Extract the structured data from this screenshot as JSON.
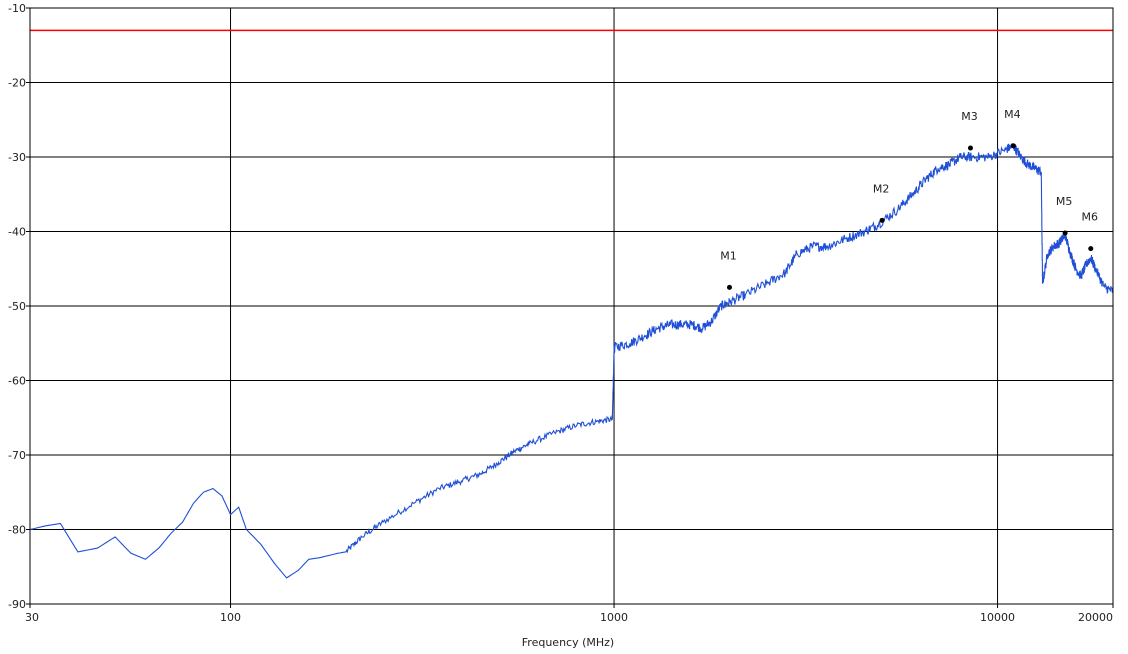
{
  "chart_data": {
    "type": "line",
    "title": "",
    "xlabel": "Frequency (MHz)",
    "ylabel": "",
    "x_scale": "log",
    "xlim": [
      30,
      20000
    ],
    "ylim": [
      -90,
      -10
    ],
    "grid": true,
    "x_ticks": [
      "30",
      "100",
      "1000",
      "10000",
      "20000"
    ],
    "x_tick_values": [
      30,
      100,
      1000,
      10000,
      20000
    ],
    "y_ticks": [
      "-10",
      "-20",
      "-30",
      "-40",
      "-50",
      "-60",
      "-70",
      "-80",
      "-90"
    ],
    "y_tick_values": [
      -10,
      -20,
      -30,
      -40,
      -50,
      -60,
      -70,
      -80,
      -90
    ],
    "limit_line": {
      "value": -13,
      "color": "#ff0000"
    },
    "series": [
      {
        "color": "#1f4fd6",
        "x": [
          30,
          33,
          36,
          40,
          45,
          50,
          55,
          60,
          65,
          70,
          75,
          80,
          85,
          90,
          95,
          100,
          105,
          110,
          120,
          130,
          140,
          150,
          160,
          170,
          180,
          190,
          200,
          220,
          250,
          300,
          350,
          400,
          450,
          500,
          550,
          600,
          700,
          800,
          900,
          990,
          1000,
          1005,
          1100,
          1200,
          1300,
          1400,
          1500,
          1600,
          1700,
          1800,
          1900,
          2000,
          2200,
          2500,
          2800,
          3000,
          3300,
          3600,
          4000,
          4500,
          4900,
          5500,
          6000,
          6500,
          7000,
          7500,
          8000,
          8600,
          9500,
          10500,
          11000,
          11500,
          12000,
          12500,
          13000,
          13100,
          13500,
          14000,
          14500,
          15000,
          15500,
          16000,
          16500,
          17000,
          17500,
          18000,
          19000,
          20000
        ],
        "y": [
          -80,
          -79.5,
          -79.2,
          -83,
          -82.5,
          -81,
          -83.2,
          -84,
          -82.5,
          -80.5,
          -79,
          -76.5,
          -75,
          -74.5,
          -75.5,
          -78,
          -77,
          -80,
          -82,
          -84.5,
          -86.5,
          -85.5,
          -84,
          -83.8,
          -83.5,
          -83.2,
          -83,
          -81,
          -79,
          -76.5,
          -74.5,
          -73.5,
          -72.5,
          -71,
          -69.5,
          -68.5,
          -67,
          -66,
          -65.5,
          -65.2,
          -56,
          -55.5,
          -55,
          -54,
          -53,
          -52.5,
          -52.5,
          -52.5,
          -53,
          -52,
          -50,
          -49.5,
          -48.5,
          -47,
          -45.5,
          -43,
          -42,
          -42,
          -41,
          -40,
          -39,
          -37,
          -35,
          -33,
          -31.5,
          -31,
          -30,
          -30,
          -30,
          -29,
          -28.5,
          -30,
          -31,
          -31.5,
          -32,
          -47,
          -43,
          -42,
          -41.5,
          -40.5,
          -43,
          -45,
          -46,
          -44.5,
          -43.5,
          -45,
          -47.5,
          -48
        ]
      }
    ],
    "markers": [
      {
        "label": "M1",
        "x": 2000,
        "y": -47.5
      },
      {
        "label": "M2",
        "x": 5000,
        "y": -38.5
      },
      {
        "label": "M3",
        "x": 8500,
        "y": -28.8
      },
      {
        "label": "M4",
        "x": 11000,
        "y": -28.5
      },
      {
        "label": "M5",
        "x": 15000,
        "y": -40.2
      },
      {
        "label": "M6",
        "x": 17500,
        "y": -42.3
      }
    ]
  }
}
